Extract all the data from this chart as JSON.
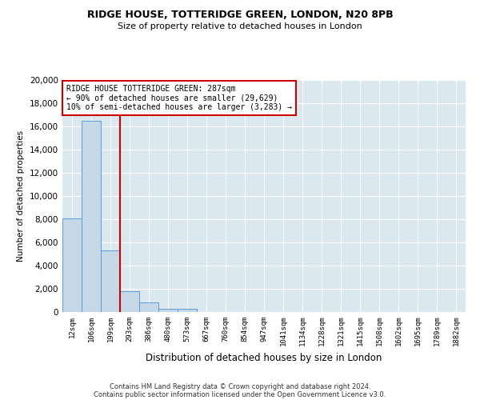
{
  "title1": "RIDGE HOUSE, TOTTERIDGE GREEN, LONDON, N20 8PB",
  "title2": "Size of property relative to detached houses in London",
  "xlabel": "Distribution of detached houses by size in London",
  "ylabel": "Number of detached properties",
  "bar_labels": [
    "12sqm",
    "106sqm",
    "199sqm",
    "293sqm",
    "386sqm",
    "480sqm",
    "573sqm",
    "667sqm",
    "760sqm",
    "854sqm",
    "947sqm",
    "1041sqm",
    "1134sqm",
    "1228sqm",
    "1321sqm",
    "1415sqm",
    "1508sqm",
    "1602sqm",
    "1695sqm",
    "1789sqm",
    "1882sqm"
  ],
  "bar_values": [
    8100,
    16500,
    5300,
    1800,
    800,
    300,
    250,
    0,
    0,
    0,
    0,
    0,
    0,
    0,
    0,
    0,
    0,
    0,
    0,
    0,
    0
  ],
  "bar_color": "#c5d8e8",
  "bar_edge_color": "#5b9bd5",
  "vline_x": 2.5,
  "vline_color": "#cc0000",
  "ylim": [
    0,
    20000
  ],
  "yticks": [
    0,
    2000,
    4000,
    6000,
    8000,
    10000,
    12000,
    14000,
    16000,
    18000,
    20000
  ],
  "annotation_text1": "RIDGE HOUSE TOTTERIDGE GREEN: 287sqm",
  "annotation_text2": "← 90% of detached houses are smaller (29,629)",
  "annotation_text3": "10% of semi-detached houses are larger (3,283) →",
  "annotation_box_color": "#ffffff",
  "annotation_border_color": "#cc0000",
  "footer1": "Contains HM Land Registry data © Crown copyright and database right 2024.",
  "footer2": "Contains public sector information licensed under the Open Government Licence v3.0.",
  "plot_bg_color": "#dce8f0",
  "fig_bg_color": "#ffffff",
  "grid_color": "#ffffff"
}
